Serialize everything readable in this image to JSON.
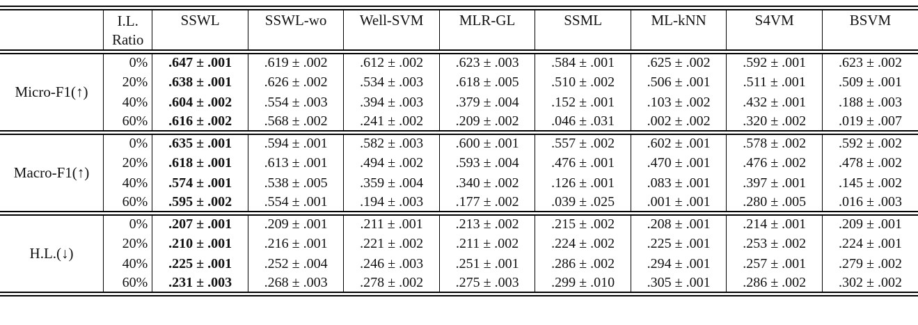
{
  "table": {
    "header": {
      "il_line1": "I.L.",
      "il_line2": "Ratio",
      "methods": [
        "SSWL",
        "SSWL-wo",
        "Well-SVM",
        "MLR-GL",
        "SSML",
        "ML-kNN",
        "S4VM",
        "BSVM"
      ]
    },
    "sections": [
      {
        "metric": "Micro-F1(↑)",
        "rows": [
          {
            "ratio": "0%",
            "values": [
              ".647 ± .001",
              ".619 ± .002",
              ".612 ± .002",
              ".623 ± .003",
              ".584 ± .001",
              ".625 ± .002",
              ".592 ± .001",
              ".623 ± .002"
            ]
          },
          {
            "ratio": "20%",
            "values": [
              ".638 ± .001",
              ".626 ± .002",
              ".534 ± .003",
              ".618 ± .005",
              ".510 ± .002",
              ".506 ± .001",
              ".511 ± .001",
              ".509 ± .001"
            ]
          },
          {
            "ratio": "40%",
            "values": [
              ".604 ± .002",
              ".554 ± .003",
              ".394 ± .003",
              ".379 ± .004",
              ".152 ± .001",
              ".103 ± .002",
              ".432 ± .001",
              ".188 ± .003"
            ]
          },
          {
            "ratio": "60%",
            "values": [
              ".616 ± .002",
              ".568 ± .002",
              ".241 ± .002",
              ".209 ± .002",
              ".046 ± .031",
              ".002 ± .002",
              ".320 ± .002",
              ".019 ± .007"
            ]
          }
        ]
      },
      {
        "metric": "Macro-F1(↑)",
        "rows": [
          {
            "ratio": "0%",
            "values": [
              ".635 ± .001",
              ".594 ± .001",
              ".582 ± .003",
              ".600 ± .001",
              ".557 ± .002",
              ".602 ± .001",
              ".578 ± .002",
              ".592 ± .002"
            ]
          },
          {
            "ratio": "20%",
            "values": [
              ".618 ± .001",
              ".613 ± .001",
              ".494 ± .002",
              ".593 ± .004",
              ".476 ± .001",
              ".470 ± .001",
              ".476 ± .002",
              ".478 ± .002"
            ]
          },
          {
            "ratio": "40%",
            "values": [
              ".574 ± .001",
              ".538 ± .005",
              ".359 ± .004",
              ".340 ± .002",
              ".126 ± .001",
              ".083 ± .001",
              ".397 ± .001",
              ".145 ± .002"
            ]
          },
          {
            "ratio": "60%",
            "values": [
              ".595 ± .002",
              ".554 ± .001",
              ".194 ± .003",
              ".177 ± .002",
              ".039 ± .025",
              ".001 ± .001",
              ".280 ± .005",
              ".016 ± .003"
            ]
          }
        ]
      },
      {
        "metric": "H.L.(↓)",
        "rows": [
          {
            "ratio": "0%",
            "values": [
              ".207 ± .001",
              ".209 ± .001",
              ".211 ± .001",
              ".213 ± .002",
              ".215 ± .002",
              ".208 ± .001",
              ".214 ± .001",
              ".209 ± .001"
            ]
          },
          {
            "ratio": "20%",
            "values": [
              ".210 ± .001",
              ".216 ± .001",
              ".221 ± .002",
              ".211 ± .002",
              ".224 ± .002",
              ".225 ± .001",
              ".253 ± .002",
              ".224 ± .001"
            ]
          },
          {
            "ratio": "40%",
            "values": [
              ".225 ± .001",
              ".252 ± .004",
              ".246 ± .003",
              ".251 ± .001",
              ".286 ± .002",
              ".294 ± .001",
              ".257 ± .001",
              ".279 ± .002"
            ]
          },
          {
            "ratio": "60%",
            "values": [
              ".231 ± .003",
              ".268 ± .003",
              ".278 ± .002",
              ".275 ± .003",
              ".299 ± .010",
              ".305 ± .001",
              ".286 ± .002",
              ".302 ± .002"
            ]
          }
        ]
      }
    ]
  }
}
